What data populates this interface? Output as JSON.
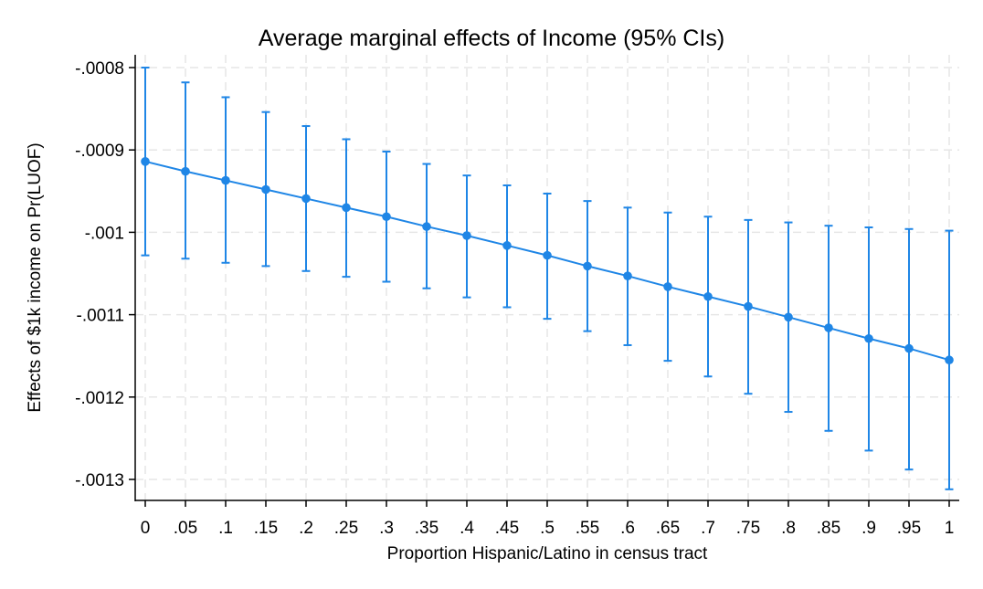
{
  "chart_data": {
    "type": "line",
    "title": "Average marginal effects of Income (95% CIs)",
    "xlabel": "Proportion Hispanic/Latino in census tract",
    "ylabel": "Effects of $1k income on Pr(LUOF)",
    "x": [
      0,
      0.05,
      0.1,
      0.15,
      0.2,
      0.25,
      0.3,
      0.35,
      0.4,
      0.45,
      0.5,
      0.55,
      0.6,
      0.65,
      0.7,
      0.75,
      0.8,
      0.85,
      0.9,
      0.95,
      1
    ],
    "x_tick_labels": [
      "0",
      ".05",
      ".1",
      ".15",
      ".2",
      ".25",
      ".3",
      ".35",
      ".4",
      ".45",
      ".5",
      ".55",
      ".6",
      ".65",
      ".7",
      ".75",
      ".8",
      ".85",
      ".9",
      ".95",
      "1"
    ],
    "y_ticks": [
      -0.0008,
      -0.0009,
      -0.001,
      -0.0011,
      -0.0012,
      -0.0013
    ],
    "y_tick_labels": [
      "-.0008",
      "-.0009",
      "-.001",
      "-.0011",
      "-.0012",
      "-.0013"
    ],
    "ylim": [
      -0.00131,
      -0.0008
    ],
    "xlim": [
      0,
      1
    ],
    "series": [
      {
        "name": "Average marginal effect",
        "color": "#1f86e6",
        "values": [
          -0.000914,
          -0.000926,
          -0.000937,
          -0.000948,
          -0.000959,
          -0.00097,
          -0.000981,
          -0.000993,
          -0.001004,
          -0.001016,
          -0.001028,
          -0.001041,
          -0.001053,
          -0.001066,
          -0.001078,
          -0.00109,
          -0.001103,
          -0.001116,
          -0.001129,
          -0.001141,
          -0.001155
        ],
        "ci_lower": [
          -0.001028,
          -0.001032,
          -0.001037,
          -0.001041,
          -0.001047,
          -0.001054,
          -0.00106,
          -0.001068,
          -0.001079,
          -0.001091,
          -0.001105,
          -0.00112,
          -0.001137,
          -0.001156,
          -0.001175,
          -0.001196,
          -0.001218,
          -0.001241,
          -0.001265,
          -0.001288,
          -0.001312
        ],
        "ci_upper": [
          -0.0008,
          -0.000818,
          -0.000836,
          -0.000854,
          -0.000871,
          -0.000887,
          -0.000902,
          -0.000917,
          -0.000931,
          -0.000943,
          -0.000953,
          -0.000962,
          -0.00097,
          -0.000976,
          -0.000981,
          -0.000985,
          -0.000988,
          -0.000992,
          -0.000994,
          -0.000996,
          -0.000998
        ]
      }
    ],
    "grid": true,
    "legend": "none"
  }
}
